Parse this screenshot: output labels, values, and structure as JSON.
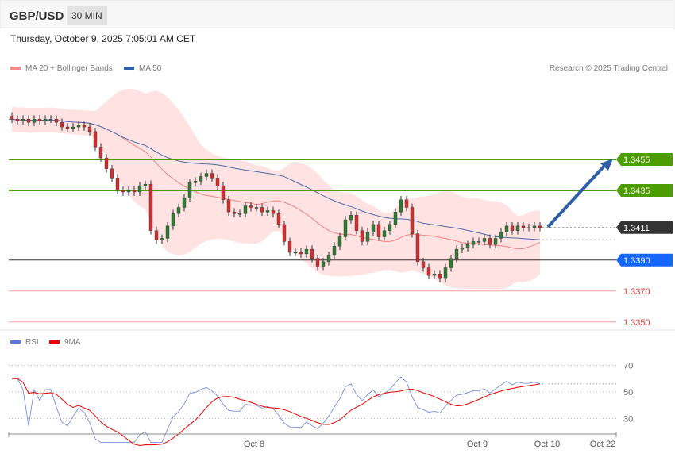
{
  "header": {
    "symbol": "GBP/USD",
    "timeframe": "30 MIN"
  },
  "datetime": "Thursday, October 9, 2025 7:05:01 AM CET",
  "legend": {
    "ma20": "MA 20 + Bollinger Bands",
    "ma50": "MA 50",
    "rsi": "RSI",
    "rsi_ma": "9MA"
  },
  "credit": "Research © 2025 Trading Central",
  "colors": {
    "up": "#2e7d32",
    "down": "#d32f2f",
    "band": "#ffdcdc",
    "ma20": "#f08080",
    "ma50": "#4a6aa8",
    "resistance": "#4c9e00",
    "support": "#1565ff",
    "current": "#333333",
    "target": "#2e5fa8"
  },
  "chart_data": {
    "type": "candlestick",
    "price_range": [
      1.333,
      1.351
    ],
    "closes": [
      1.3481,
      1.348,
      1.3481,
      1.3479,
      1.3481,
      1.348,
      1.3481,
      1.3481,
      1.3479,
      1.3476,
      1.3475,
      1.3476,
      1.3477,
      1.3476,
      1.3473,
      1.3463,
      1.3456,
      1.3449,
      1.3443,
      1.3435,
      1.3434,
      1.3435,
      1.3434,
      1.3438,
      1.3439,
      1.3409,
      1.3403,
      1.3404,
      1.3412,
      1.342,
      1.3424,
      1.343,
      1.344,
      1.3441,
      1.3444,
      1.3446,
      1.3443,
      1.3438,
      1.3429,
      1.3421,
      1.342,
      1.342,
      1.3425,
      1.3424,
      1.3424,
      1.3421,
      1.3422,
      1.342,
      1.3413,
      1.3402,
      1.3395,
      1.3395,
      1.3394,
      1.3397,
      1.3391,
      1.3386,
      1.3389,
      1.3393,
      1.3399,
      1.3405,
      1.3416,
      1.3419,
      1.3409,
      1.3402,
      1.3408,
      1.3413,
      1.3405,
      1.3409,
      1.3413,
      1.3421,
      1.3429,
      1.3424,
      1.3407,
      1.3389,
      1.3385,
      1.338,
      1.3381,
      1.3378,
      1.3385,
      1.3391,
      1.3397,
      1.3398,
      1.34,
      1.3402,
      1.3402,
      1.3404,
      1.34,
      1.3404,
      1.3408,
      1.3412,
      1.3409,
      1.3412,
      1.3411,
      1.3411,
      1.3412,
      1.3411
    ],
    "levels": [
      {
        "value": "1.3455",
        "kind": "resistance"
      },
      {
        "value": "1.3435",
        "kind": "resistance"
      },
      {
        "value": "1.3411",
        "kind": "current"
      },
      {
        "value": "1.3390",
        "kind": "pivot"
      },
      {
        "value": "1.3370",
        "kind": "support"
      },
      {
        "value": "1.3350",
        "kind": "support"
      }
    ],
    "rsi_ticks": [
      "70",
      "50",
      "30"
    ],
    "x_ticks": [
      "Oct 8",
      "Oct 9",
      "Oct 10",
      "Oct 22"
    ]
  }
}
